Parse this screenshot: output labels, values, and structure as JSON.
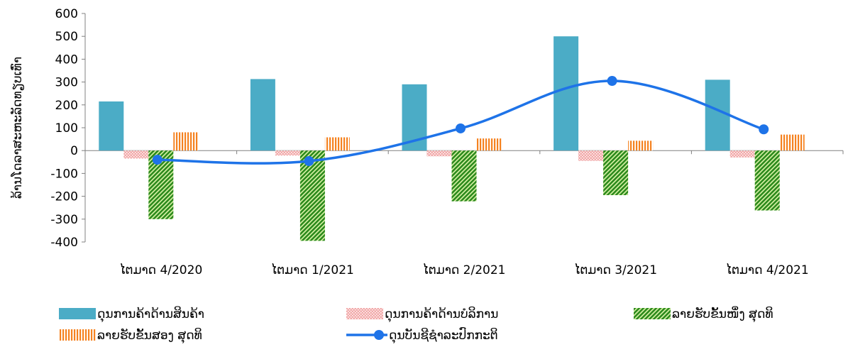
{
  "chart_data": {
    "type": "bar",
    "title": "",
    "xlabel": "",
    "ylabel": "ລ້ານໂດລາສະຫະລັດທຽບເທົ່າ",
    "ylim": [
      -400,
      600
    ],
    "yticks": [
      600,
      500,
      400,
      300,
      200,
      100,
      0,
      -100,
      -200,
      -300,
      -400
    ],
    "categories": [
      "ໄຕມາດ 4/2020",
      "ໄຕມາດ 1/2021",
      "ໄຕມາດ 2/2021",
      "ໄຕມາດ 3/2021",
      "ໄຕມາດ 4/2021"
    ],
    "series": [
      {
        "name": "ດຸນການຄ້າດ້ານສິນຄ້າ",
        "type": "bar",
        "color": "#4bacc6",
        "pattern": "solid",
        "values": [
          215,
          313,
          290,
          500,
          310
        ]
      },
      {
        "name": "ດຸນການຄ້າດ້ານບໍລິການ",
        "type": "bar",
        "color": "#f2a9a9",
        "pattern": "dots",
        "values": [
          -35,
          -22,
          -25,
          -45,
          -30
        ]
      },
      {
        "name": "ລາຍຮັບຂັ້ນໜຶ່ງ ສຸດທິ",
        "type": "bar",
        "color": "#2e8b1e",
        "pattern": "zigzag",
        "values": [
          -300,
          -395,
          -222,
          -195,
          -262
        ]
      },
      {
        "name": "ລາຍຮັບຂັ້ນສອງ ສຸດທິ",
        "type": "bar",
        "color": "#f58220",
        "pattern": "vstripes",
        "values": [
          80,
          58,
          53,
          43,
          70
        ]
      },
      {
        "name": "ດຸນບັນຊີຊໍາລະປົກກະຕິ",
        "type": "line",
        "color": "#1e73e8",
        "values": [
          -40,
          -46,
          97,
          305,
          93
        ]
      }
    ],
    "legend": "bottom",
    "grid": false
  }
}
